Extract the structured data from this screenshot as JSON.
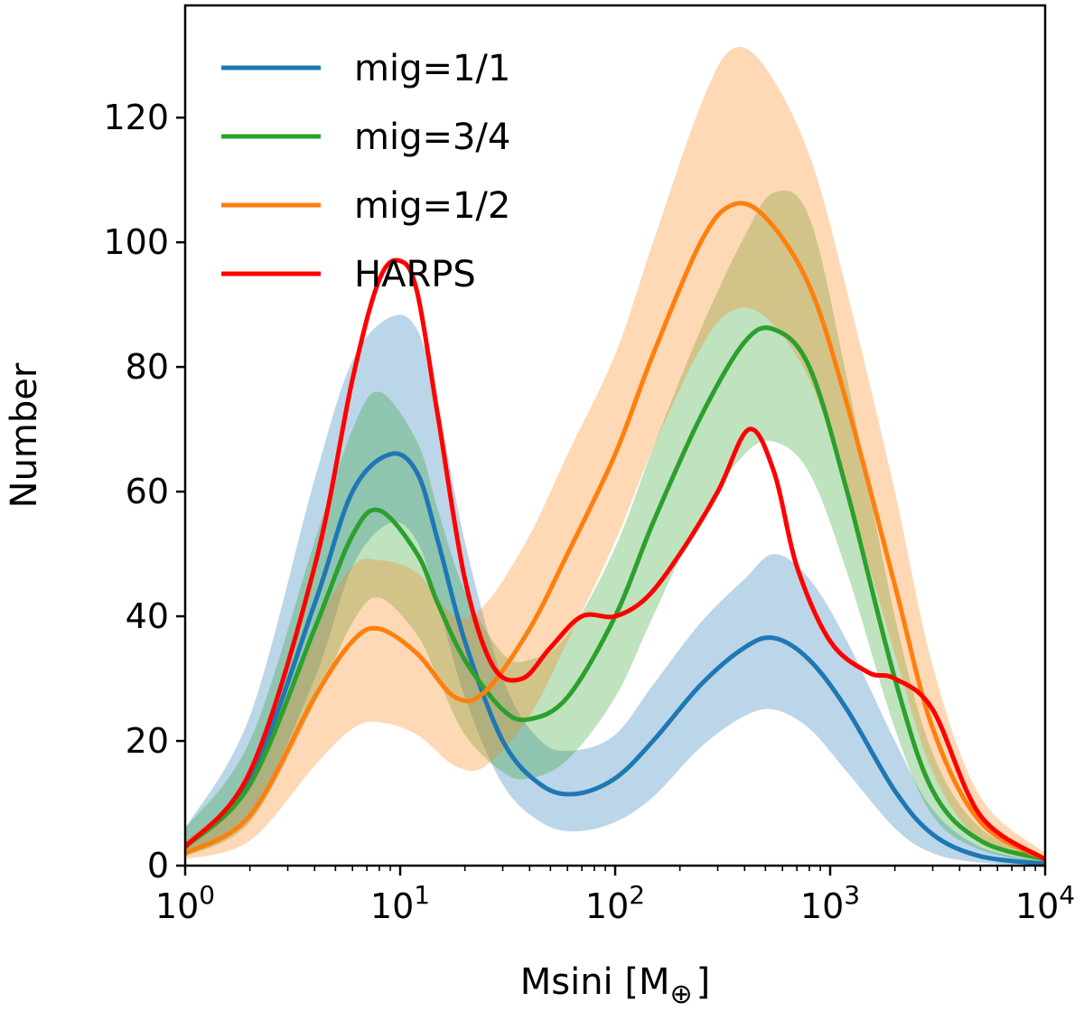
{
  "chart_data": {
    "type": "line",
    "xlabel": "Msini [M",
    "xlabel_sub": "⊕",
    "xlabel_close": "]",
    "ylabel": "Number",
    "xscale": "log",
    "xlim": [
      1,
      10000
    ],
    "ylim": [
      0,
      138
    ],
    "legend_position": "top-left",
    "grid": false,
    "x_ticks": [
      {
        "value": 1,
        "base": "10",
        "exp": "0"
      },
      {
        "value": 10,
        "base": "10",
        "exp": "1"
      },
      {
        "value": 100,
        "base": "10",
        "exp": "2"
      },
      {
        "value": 1000,
        "base": "10",
        "exp": "3"
      },
      {
        "value": 10000,
        "base": "10",
        "exp": "4"
      }
    ],
    "y_ticks": [
      {
        "value": 0,
        "label": "0"
      },
      {
        "value": 20,
        "label": "20"
      },
      {
        "value": 40,
        "label": "40"
      },
      {
        "value": 60,
        "label": "60"
      },
      {
        "value": 80,
        "label": "80"
      },
      {
        "value": 100,
        "label": "100"
      },
      {
        "value": 120,
        "label": "120"
      }
    ],
    "series": [
      {
        "name": "mig=1/1",
        "color": "#1f77b4",
        "band_opacity": 0.3,
        "x": [
          1,
          2,
          4,
          6,
          9,
          12,
          15,
          20,
          30,
          45,
          65,
          100,
          150,
          250,
          400,
          550,
          800,
          1200,
          2000,
          3000,
          5000,
          10000
        ],
        "values": [
          3,
          14,
          42,
          60,
          66,
          63,
          52,
          36,
          20,
          13,
          11.5,
          14,
          20,
          29,
          35,
          36.5,
          33,
          25,
          12,
          5,
          1.5,
          0.3
        ],
        "lower": [
          1.5,
          8,
          30,
          48,
          55,
          52,
          42,
          27,
          13,
          7,
          5.5,
          7,
          11,
          19,
          24,
          25,
          22,
          15,
          6,
          2,
          0.5,
          0.1
        ],
        "upper": [
          6,
          24,
          62,
          81,
          88,
          86,
          74,
          52,
          30,
          20,
          18.5,
          21,
          29,
          39,
          46,
          50,
          46,
          36,
          20,
          9,
          3,
          0.6
        ]
      },
      {
        "name": "mig=3/4",
        "color": "#2ca02c",
        "band_opacity": 0.3,
        "x": [
          1,
          2,
          4,
          6,
          8,
          12,
          15,
          20,
          30,
          40,
          60,
          100,
          150,
          250,
          400,
          550,
          800,
          1200,
          2000,
          3000,
          5000,
          10000
        ],
        "values": [
          3,
          13,
          38,
          53,
          57,
          50,
          42,
          33,
          25,
          23.5,
          27,
          40,
          55,
          72,
          84,
          86,
          80,
          60,
          30,
          12,
          4,
          1
        ],
        "lower": [
          1.5,
          7,
          26,
          39,
          43,
          37,
          30,
          21,
          15,
          14,
          17,
          27,
          40,
          56,
          66,
          68,
          63,
          47,
          22,
          8,
          2.5,
          0.5
        ],
        "upper": [
          6,
          20,
          52,
          70,
          76,
          68,
          57,
          44,
          34,
          33,
          37,
          51,
          67,
          86,
          101,
          108,
          104,
          78,
          40,
          18,
          6,
          1.5
        ]
      },
      {
        "name": "mig=1/2",
        "color": "#ff7f0e",
        "band_opacity": 0.3,
        "x": [
          1,
          2,
          4,
          6,
          8,
          12,
          18,
          25,
          40,
          60,
          100,
          150,
          250,
          350,
          500,
          800,
          1200,
          2000,
          3000,
          5000,
          10000
        ],
        "values": [
          2,
          8,
          27,
          36,
          38,
          34,
          27,
          28,
          38,
          50,
          66,
          82,
          100,
          106,
          104,
          93,
          74,
          45,
          22,
          7,
          1
        ],
        "lower": [
          1,
          4,
          16,
          22,
          23,
          21,
          16,
          16,
          24,
          36,
          52,
          67,
          83,
          89,
          88,
          78,
          60,
          34,
          15,
          4,
          0.5
        ],
        "upper": [
          4,
          14,
          38,
          48,
          49,
          47,
          40,
          42,
          53,
          66,
          82,
          100,
          122,
          131,
          128,
          114,
          92,
          60,
          32,
          11,
          2
        ]
      },
      {
        "name": "HARPS",
        "color": "#ff0000",
        "band_opacity": 0,
        "x": [
          1,
          2,
          4,
          6,
          8,
          10,
          12,
          15,
          20,
          27,
          37,
          50,
          70,
          100,
          140,
          200,
          300,
          420,
          550,
          700,
          1000,
          1500,
          2000,
          3000,
          5000,
          10000
        ],
        "values": [
          3,
          15,
          48,
          78,
          94,
          97,
          92,
          72,
          46,
          32,
          30,
          35,
          40,
          40,
          43,
          50,
          60,
          70,
          63,
          48,
          36,
          31,
          30,
          25,
          8,
          1
        ]
      }
    ]
  }
}
